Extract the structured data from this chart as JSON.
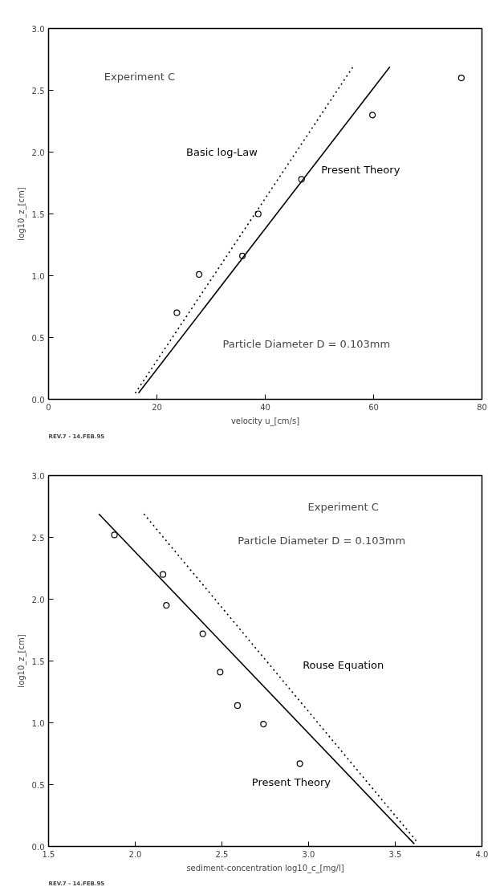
{
  "chart_data": [
    {
      "type": "scatter",
      "xlabel": "velocity u_[cm/s]",
      "ylabel": "log10_z_[cm]",
      "xlim": [
        0,
        80
      ],
      "ylim": [
        0,
        3.0
      ],
      "xticks": [
        0,
        20,
        40,
        60,
        80
      ],
      "yticks": [
        {
          "value": 0,
          "label": "0.0"
        },
        0.5,
        {
          "value": 1,
          "label": "1.0"
        },
        1.5,
        {
          "value": 2,
          "label": "2.0"
        },
        2.5,
        {
          "value": 3,
          "label": "3.0"
        }
      ],
      "grid": false,
      "legend": false,
      "series": [
        {
          "marker": "circle",
          "color": "#000000",
          "x": [
            23.7,
            27.8,
            35.8,
            38.7,
            46.7,
            59.8,
            76.2
          ],
          "values": [
            0.7,
            1.01,
            1.16,
            1.5,
            1.78,
            2.3,
            2.6
          ]
        },
        {
          "type": "line",
          "name": "Basic log-Law",
          "line_style": "dotted",
          "color": "#000000",
          "x": [
            16.0,
            56.2
          ],
          "values": [
            0.05,
            2.69
          ]
        },
        {
          "type": "line",
          "name": "Present Theory",
          "line_style": "solid",
          "color": "#000000",
          "x": [
            16.6,
            63.0
          ],
          "values": [
            0.05,
            2.69
          ]
        }
      ],
      "annotations": [
        "Experiment C",
        "Particle Diameter D = 0.103mm",
        "REV.7 - 14.FEB.95"
      ]
    },
    {
      "type": "scatter",
      "xlabel": "sediment-concentration log10_c_[mg/l]",
      "ylabel": "log10_z_[cm]",
      "xlim": [
        1.5,
        4.0
      ],
      "ylim": [
        0,
        3.0
      ],
      "xticks": [
        1.5,
        {
          "value": 2,
          "label": "2.0"
        },
        2.5,
        {
          "value": 3,
          "label": "3.0"
        },
        3.5,
        {
          "value": 4,
          "label": "4.0"
        }
      ],
      "yticks": [
        {
          "value": 0,
          "label": "0.0"
        },
        0.5,
        {
          "value": 1,
          "label": "1.0"
        },
        1.5,
        {
          "value": 2,
          "label": "2.0"
        },
        2.5,
        {
          "value": 3,
          "label": "3.0"
        }
      ],
      "grid": false,
      "legend": false,
      "series": [
        {
          "marker": "circle",
          "color": "#000000",
          "x": [
            1.88,
            2.16,
            2.18,
            2.39,
            2.49,
            2.59,
            2.74,
            2.95
          ],
          "values": [
            2.52,
            2.2,
            1.95,
            1.72,
            1.41,
            1.14,
            0.99,
            0.67
          ]
        },
        {
          "type": "line",
          "name": "Rouse Equation",
          "line_style": "dotted",
          "color": "#000000",
          "x": [
            2.05,
            3.63
          ],
          "values": [
            2.69,
            0.03
          ]
        },
        {
          "type": "line",
          "name": "Present Theory",
          "line_style": "solid",
          "color": "#000000",
          "x": [
            1.79,
            3.61
          ],
          "values": [
            2.69,
            0.02
          ]
        }
      ],
      "annotations": [
        "Experiment C",
        "Particle Diameter D = 0.103mm",
        "REV.7 - 14.FEB.95"
      ]
    }
  ]
}
